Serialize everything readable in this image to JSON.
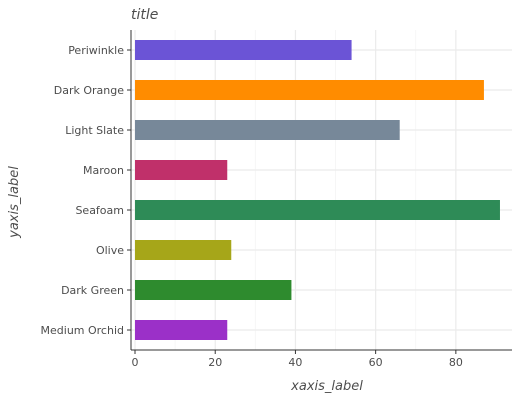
{
  "chart_data": {
    "type": "bar",
    "orientation": "horizontal",
    "title": "title",
    "xlabel": "xaxis_label",
    "ylabel": "yaxis_label",
    "categories": [
      "Medium Orchid",
      "Dark Green",
      "Olive",
      "Seafoam",
      "Maroon",
      "Light Slate",
      "Dark Orange",
      "Periwinkle"
    ],
    "values": [
      23,
      39,
      24,
      91,
      23,
      66,
      87,
      54
    ],
    "colors": [
      "#9B30C8",
      "#2E8B2E",
      "#A6A619",
      "#2E8B57",
      "#C0306A",
      "#778899",
      "#FF8C00",
      "#6B54D6"
    ],
    "xlim": [
      -1,
      94
    ],
    "xticks": [
      0,
      20,
      40,
      60,
      80
    ],
    "xtick_labels": [
      "0",
      "20",
      "40",
      "60",
      "80"
    ],
    "grid": true,
    "legend": "none"
  }
}
